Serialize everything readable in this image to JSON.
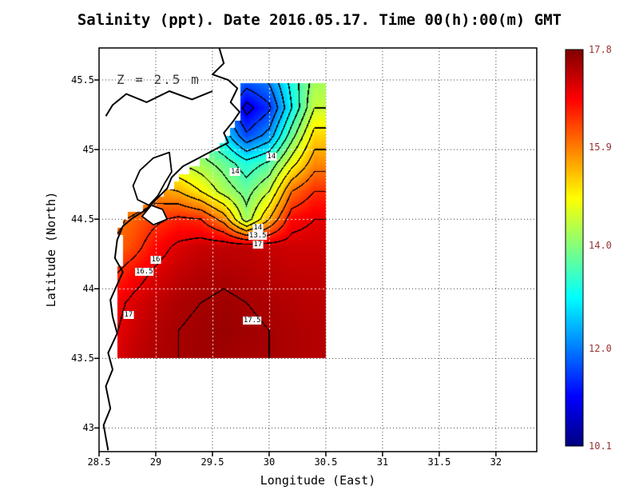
{
  "title": "Salinity (ppt). Date 2016.05.17. Time 00(h):00(m) GMT",
  "annotation": "Z = 2.5 m",
  "axes": {
    "xlabel": "Longitude (East)",
    "ylabel": "Latitude (North)",
    "x_range": [
      28.5,
      32.36
    ],
    "y_range": [
      42.83,
      45.73
    ],
    "x_ticks": [
      {
        "value": 28.5,
        "label": "28.5"
      },
      {
        "value": 29,
        "label": "29"
      },
      {
        "value": 29.5,
        "label": "29.5"
      },
      {
        "value": 30,
        "label": "30"
      },
      {
        "value": 30.5,
        "label": "30.5"
      },
      {
        "value": 31,
        "label": "31"
      },
      {
        "value": 31.5,
        "label": "31.5"
      },
      {
        "value": 32,
        "label": "32"
      }
    ],
    "y_ticks": [
      {
        "value": 43,
        "label": "43"
      },
      {
        "value": 43.5,
        "label": "43.5"
      },
      {
        "value": 44,
        "label": "44"
      },
      {
        "value": 44.5,
        "label": "44.5"
      },
      {
        "value": 45,
        "label": "45"
      },
      {
        "value": 45.5,
        "label": "45.5"
      }
    ]
  },
  "colorbar": {
    "min": 10.1,
    "max": 17.8,
    "colormap": "jet",
    "label_color": "#993333",
    "labels": [
      {
        "value": 17.8,
        "text": "17.8"
      },
      {
        "value": 15.9,
        "text": "15.9"
      },
      {
        "value": 14.0,
        "text": "14.0"
      },
      {
        "value": 12.0,
        "text": "12.0"
      },
      {
        "value": 10.1,
        "text": "10.1"
      }
    ]
  },
  "chart_data": {
    "type": "heatmap",
    "title": "Sea surface salinity (ppt) at Z = 2.5 m, western Black Sea, 2016.05.17 00:00 GMT",
    "units": "ppt",
    "colormap": "jet",
    "value_range": [
      10.1,
      17.8
    ],
    "contour_interval": 0.5,
    "lon": [
      28.6,
      28.8,
      29.0,
      29.2,
      29.4,
      29.6,
      29.8,
      30.0,
      30.2,
      30.4,
      30.6
    ],
    "lat": [
      43.5,
      43.7,
      43.9,
      44.1,
      44.3,
      44.5,
      44.7,
      44.9,
      45.1,
      45.3,
      45.5
    ],
    "values": [
      [
        17.0,
        17.3,
        17.45,
        17.5,
        17.55,
        17.55,
        17.5,
        17.5,
        17.45,
        17.4,
        17.4
      ],
      [
        16.9,
        17.2,
        17.4,
        17.5,
        17.55,
        17.6,
        17.55,
        17.5,
        17.45,
        17.4,
        17.4
      ],
      [
        16.8,
        17.1,
        17.3,
        17.45,
        17.5,
        17.55,
        17.5,
        17.45,
        17.4,
        17.35,
        17.35
      ],
      [
        16.4,
        16.8,
        17.1,
        17.3,
        17.4,
        17.45,
        17.4,
        17.35,
        17.3,
        17.3,
        17.3
      ],
      [
        16.0,
        16.3,
        16.8,
        17.1,
        17.25,
        17.3,
        17.3,
        17.25,
        17.2,
        17.2,
        17.2
      ],
      [
        15.8,
        16.1,
        16.4,
        16.6,
        16.5,
        15.8,
        14.2,
        15.5,
        16.8,
        17.0,
        17.0
      ],
      [
        15.0,
        15.4,
        15.7,
        15.5,
        15.0,
        14.3,
        13.8,
        14.5,
        16.0,
        16.5,
        16.5
      ],
      [
        14.8,
        14.9,
        14.8,
        14.5,
        14.2,
        13.8,
        13.2,
        13.6,
        14.8,
        15.8,
        15.8
      ],
      [
        14.5,
        14.4,
        14.3,
        14.0,
        13.6,
        12.8,
        11.6,
        12.2,
        13.8,
        15.2,
        15.2
      ],
      [
        14.2,
        14.1,
        14.0,
        13.8,
        13.4,
        12.0,
        10.8,
        11.4,
        13.0,
        14.5,
        14.5
      ],
      [
        14.0,
        13.9,
        13.8,
        13.6,
        13.3,
        12.6,
        11.8,
        12.1,
        13.2,
        14.2,
        14.2
      ]
    ],
    "data_bounds": {
      "lon_max": 30.5,
      "lat_min": 43.5,
      "lat_max": 45.48
    },
    "west_edge": [
      [
        43.5,
        28.66
      ],
      [
        43.8,
        28.62
      ],
      [
        44.0,
        28.64
      ],
      [
        44.2,
        28.68
      ],
      [
        44.4,
        28.66
      ],
      [
        44.5,
        28.74
      ],
      [
        44.6,
        28.96
      ],
      [
        44.7,
        29.14
      ],
      [
        44.8,
        29.22
      ],
      [
        44.9,
        29.38
      ],
      [
        45.0,
        29.56
      ],
      [
        45.1,
        29.64
      ],
      [
        45.2,
        29.7
      ],
      [
        45.35,
        29.72
      ],
      [
        45.5,
        29.7
      ]
    ],
    "contour_labels": [
      {
        "text": "14",
        "lon": 29.7,
        "lat": 44.84
      },
      {
        "text": "14",
        "lon": 30.02,
        "lat": 44.95
      },
      {
        "text": "16",
        "lon": 29.0,
        "lat": 44.21
      },
      {
        "text": "16.5",
        "lon": 28.9,
        "lat": 44.12
      },
      {
        "text": "17",
        "lon": 28.76,
        "lat": 43.81
      },
      {
        "text": "17.5",
        "lon": 29.85,
        "lat": 43.77
      },
      {
        "text": "14",
        "lon": 29.9,
        "lat": 44.44
      },
      {
        "text": "13.5",
        "lon": 29.9,
        "lat": 44.38
      },
      {
        "text": "17",
        "lon": 29.9,
        "lat": 44.32
      }
    ],
    "coastlines": [
      [
        [
          29.56,
          45.73
        ],
        [
          29.6,
          45.62
        ],
        [
          29.5,
          45.54
        ],
        [
          29.64,
          45.5
        ],
        [
          29.72,
          45.44
        ],
        [
          29.66,
          45.34
        ],
        [
          29.74,
          45.27
        ],
        [
          29.68,
          45.2
        ],
        [
          29.6,
          45.12
        ],
        [
          29.64,
          45.05
        ],
        [
          29.52,
          45.0
        ],
        [
          29.38,
          44.94
        ],
        [
          29.24,
          44.88
        ],
        [
          29.14,
          44.8
        ],
        [
          29.1,
          44.72
        ],
        [
          29.0,
          44.64
        ],
        [
          28.92,
          44.57
        ],
        [
          28.8,
          44.51
        ],
        [
          28.71,
          44.45
        ],
        [
          28.66,
          44.35
        ],
        [
          28.64,
          44.22
        ],
        [
          28.71,
          44.12
        ],
        [
          28.66,
          44.03
        ],
        [
          28.6,
          43.92
        ],
        [
          28.62,
          43.8
        ],
        [
          28.66,
          43.68
        ],
        [
          28.58,
          43.54
        ],
        [
          28.62,
          43.42
        ],
        [
          28.56,
          43.3
        ],
        [
          28.6,
          43.14
        ],
        [
          28.54,
          43.02
        ],
        [
          28.58,
          42.84
        ]
      ],
      [
        [
          29.5,
          45.42
        ],
        [
          29.32,
          45.36
        ],
        [
          29.12,
          45.42
        ],
        [
          28.92,
          45.34
        ],
        [
          28.74,
          45.4
        ],
        [
          28.62,
          45.32
        ],
        [
          28.56,
          45.24
        ]
      ]
    ],
    "lakes": [
      [
        [
          29.12,
          44.98
        ],
        [
          28.98,
          44.94
        ],
        [
          28.86,
          44.85
        ],
        [
          28.8,
          44.74
        ],
        [
          28.84,
          44.64
        ],
        [
          28.94,
          44.6
        ],
        [
          29.02,
          44.67
        ],
        [
          29.08,
          44.76
        ],
        [
          29.14,
          44.84
        ],
        [
          29.12,
          44.98
        ]
      ],
      [
        [
          28.96,
          44.6
        ],
        [
          29.06,
          44.57
        ],
        [
          29.1,
          44.5
        ],
        [
          28.98,
          44.46
        ],
        [
          28.88,
          44.52
        ],
        [
          28.96,
          44.6
        ]
      ]
    ]
  }
}
